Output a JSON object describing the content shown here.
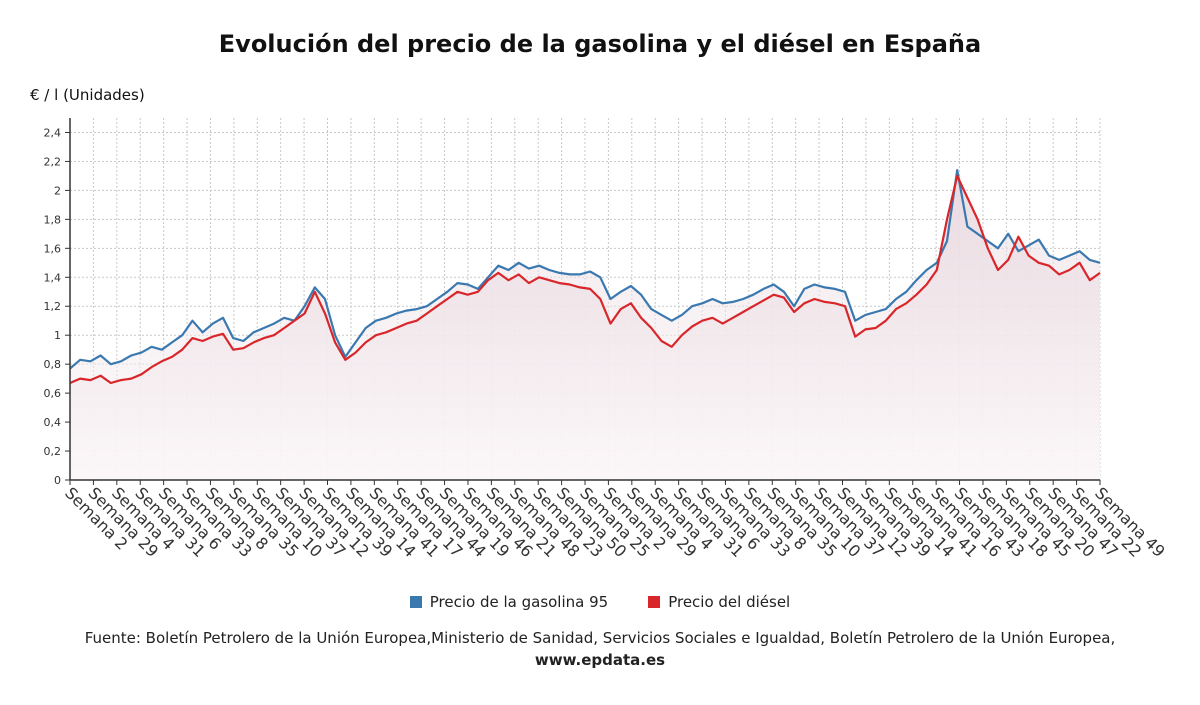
{
  "title": "Evolución del precio de la gasolina y el diésel en España",
  "y_unit": "€ / l (Unidades)",
  "legend": {
    "gasoline": "Precio de la gasolina 95",
    "diesel": "Precio del diésel"
  },
  "source": {
    "text": "Fuente: Boletín Petrolero de la Unión Europea,Ministerio de Sanidad, Servicios Sociales e Igualdad, Boletín Petrolero de la Unión Europea,",
    "link": "www.epdata.es"
  },
  "colors": {
    "gasoline": "#3a78b0",
    "diesel": "#d9262a",
    "grid": "#c8c8c8",
    "axis": "#333333",
    "fill_top": "#e8d8df",
    "fill_bottom": "#fbf7f8"
  },
  "chart_data": {
    "type": "line",
    "ylim": [
      0,
      2.5
    ],
    "yticks": [
      "0",
      "0,2",
      "0,4",
      "0,6",
      "0,8",
      "1",
      "1,2",
      "1,4",
      "1,6",
      "1,8",
      "2",
      "2,2",
      "2,4"
    ],
    "ytick_values": [
      0,
      0.2,
      0.4,
      0.6,
      0.8,
      1.0,
      1.2,
      1.4,
      1.6,
      1.8,
      2.0,
      2.2,
      2.4
    ],
    "x_tick_labels": [
      "Semana 2",
      "Semana 29",
      "Semana 4",
      "Semana 31",
      "Semana 6",
      "Semana 33",
      "Semana 8",
      "Semana 35",
      "Semana 10",
      "Semana 37",
      "Semana 12",
      "Semana 39",
      "Semana 14",
      "Semana 41",
      "Semana 17",
      "Semana 44",
      "Semana 19",
      "Semana 46",
      "Semana 21",
      "Semana 48",
      "Semana 23",
      "Semana 50",
      "Semana 25",
      "Semana 2",
      "Semana 29",
      "Semana 4",
      "Semana 31",
      "Semana 6",
      "Semana 33",
      "Semana 8",
      "Semana 35",
      "Semana 10",
      "Semana 37",
      "Semana 12",
      "Semana 39",
      "Semana 14",
      "Semana 41",
      "Semana 16",
      "Semana 43",
      "Semana 18",
      "Semana 45",
      "Semana 20",
      "Semana 47",
      "Semana 22",
      "Semana 49"
    ],
    "series": [
      {
        "name": "Precio de la gasolina 95",
        "values": [
          0.77,
          0.83,
          0.82,
          0.86,
          0.8,
          0.82,
          0.86,
          0.88,
          0.92,
          0.9,
          0.95,
          1.0,
          1.1,
          1.02,
          1.08,
          1.12,
          0.98,
          0.96,
          1.02,
          1.05,
          1.08,
          1.12,
          1.1,
          1.2,
          1.33,
          1.25,
          1.0,
          0.85,
          0.95,
          1.05,
          1.1,
          1.12,
          1.15,
          1.17,
          1.18,
          1.2,
          1.25,
          1.3,
          1.36,
          1.35,
          1.32,
          1.4,
          1.48,
          1.45,
          1.5,
          1.46,
          1.48,
          1.45,
          1.43,
          1.42,
          1.42,
          1.44,
          1.4,
          1.25,
          1.3,
          1.34,
          1.28,
          1.18,
          1.14,
          1.1,
          1.14,
          1.2,
          1.22,
          1.25,
          1.22,
          1.23,
          1.25,
          1.28,
          1.32,
          1.35,
          1.3,
          1.2,
          1.32,
          1.35,
          1.33,
          1.32,
          1.3,
          1.1,
          1.14,
          1.16,
          1.18,
          1.25,
          1.3,
          1.38,
          1.45,
          1.5,
          1.65,
          2.14,
          1.75,
          1.7,
          1.65,
          1.6,
          1.7,
          1.58,
          1.62,
          1.66,
          1.55,
          1.52,
          1.55,
          1.58,
          1.52,
          1.5
        ]
      },
      {
        "name": "Precio del diésel",
        "values": [
          0.67,
          0.7,
          0.69,
          0.72,
          0.67,
          0.69,
          0.7,
          0.73,
          0.78,
          0.82,
          0.85,
          0.9,
          0.98,
          0.96,
          0.99,
          1.01,
          0.9,
          0.91,
          0.95,
          0.98,
          1.0,
          1.05,
          1.1,
          1.15,
          1.3,
          1.15,
          0.95,
          0.83,
          0.88,
          0.95,
          1.0,
          1.02,
          1.05,
          1.08,
          1.1,
          1.15,
          1.2,
          1.25,
          1.3,
          1.28,
          1.3,
          1.38,
          1.43,
          1.38,
          1.42,
          1.36,
          1.4,
          1.38,
          1.36,
          1.35,
          1.33,
          1.32,
          1.25,
          1.08,
          1.18,
          1.22,
          1.12,
          1.05,
          0.96,
          0.92,
          1.0,
          1.06,
          1.1,
          1.12,
          1.08,
          1.12,
          1.16,
          1.2,
          1.24,
          1.28,
          1.26,
          1.16,
          1.22,
          1.25,
          1.23,
          1.22,
          1.2,
          0.99,
          1.04,
          1.05,
          1.1,
          1.18,
          1.22,
          1.28,
          1.35,
          1.45,
          1.8,
          2.1,
          1.95,
          1.8,
          1.6,
          1.45,
          1.52,
          1.68,
          1.55,
          1.5,
          1.48,
          1.42,
          1.45,
          1.5,
          1.38,
          1.43
        ]
      }
    ]
  }
}
